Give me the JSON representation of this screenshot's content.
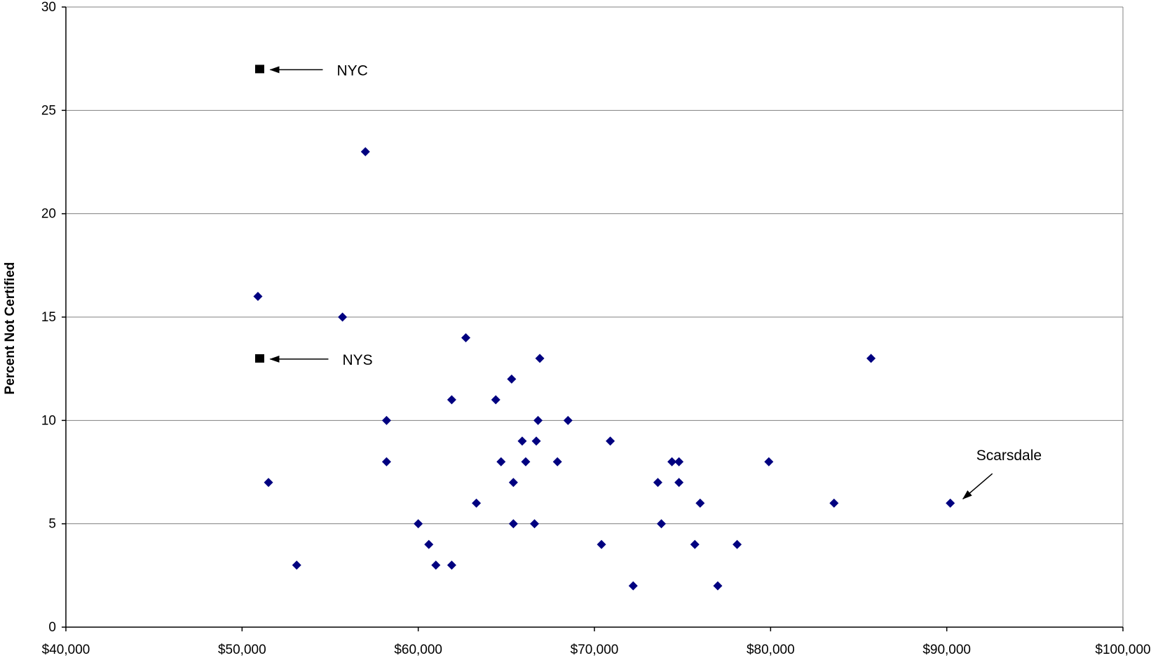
{
  "chart_data": {
    "type": "scatter",
    "title": "",
    "xlabel": "",
    "ylabel": "Percent Not Certified",
    "xlim": [
      40000,
      100000
    ],
    "ylim": [
      0,
      30
    ],
    "x_ticks": [
      40000,
      50000,
      60000,
      70000,
      80000,
      90000,
      100000
    ],
    "x_tick_labels": [
      "$40,000",
      "$50,000",
      "$60,000",
      "$70,000",
      "$80,000",
      "$90,000",
      "$100,000"
    ],
    "y_ticks": [
      0,
      5,
      10,
      15,
      20,
      25,
      30
    ],
    "y_tick_labels": [
      "0",
      "5",
      "10",
      "15",
      "20",
      "25",
      "30"
    ],
    "grid": "horizontal",
    "colors": {
      "points": "#000080",
      "highlight": "#000000",
      "grid": "#808080"
    },
    "series": [
      {
        "marker": "diamond",
        "points": [
          [
            50900,
            16
          ],
          [
            51500,
            7
          ],
          [
            53100,
            3
          ],
          [
            55700,
            15
          ],
          [
            57000,
            23
          ],
          [
            58200,
            10
          ],
          [
            58200,
            8
          ],
          [
            60000,
            5
          ],
          [
            60600,
            4
          ],
          [
            61000,
            3
          ],
          [
            61900,
            11
          ],
          [
            61900,
            3
          ],
          [
            62700,
            14
          ],
          [
            63300,
            6
          ],
          [
            64400,
            11
          ],
          [
            64700,
            8
          ],
          [
            65300,
            12
          ],
          [
            65400,
            7
          ],
          [
            65400,
            5
          ],
          [
            65900,
            9
          ],
          [
            66100,
            8
          ],
          [
            66600,
            5
          ],
          [
            66700,
            9
          ],
          [
            66800,
            10
          ],
          [
            66900,
            13
          ],
          [
            67900,
            8
          ],
          [
            68500,
            10
          ],
          [
            70400,
            4
          ],
          [
            70900,
            9
          ],
          [
            72200,
            2
          ],
          [
            73600,
            7
          ],
          [
            73800,
            5
          ],
          [
            74400,
            8
          ],
          [
            74800,
            8
          ],
          [
            74800,
            7
          ],
          [
            75700,
            4
          ],
          [
            76000,
            6
          ],
          [
            77000,
            2
          ],
          [
            78100,
            4
          ],
          [
            79900,
            8
          ],
          [
            83600,
            6
          ],
          [
            85700,
            13
          ],
          [
            90200,
            6
          ]
        ]
      },
      {
        "marker": "square",
        "points": [
          [
            51000,
            27
          ],
          [
            51000,
            13
          ]
        ]
      }
    ],
    "annotations": [
      {
        "text": "NYC",
        "point": [
          51000,
          27
        ]
      },
      {
        "text": "NYS",
        "point": [
          51000,
          13
        ]
      },
      {
        "text": "Scarsdale",
        "point": [
          90200,
          6
        ]
      }
    ]
  }
}
